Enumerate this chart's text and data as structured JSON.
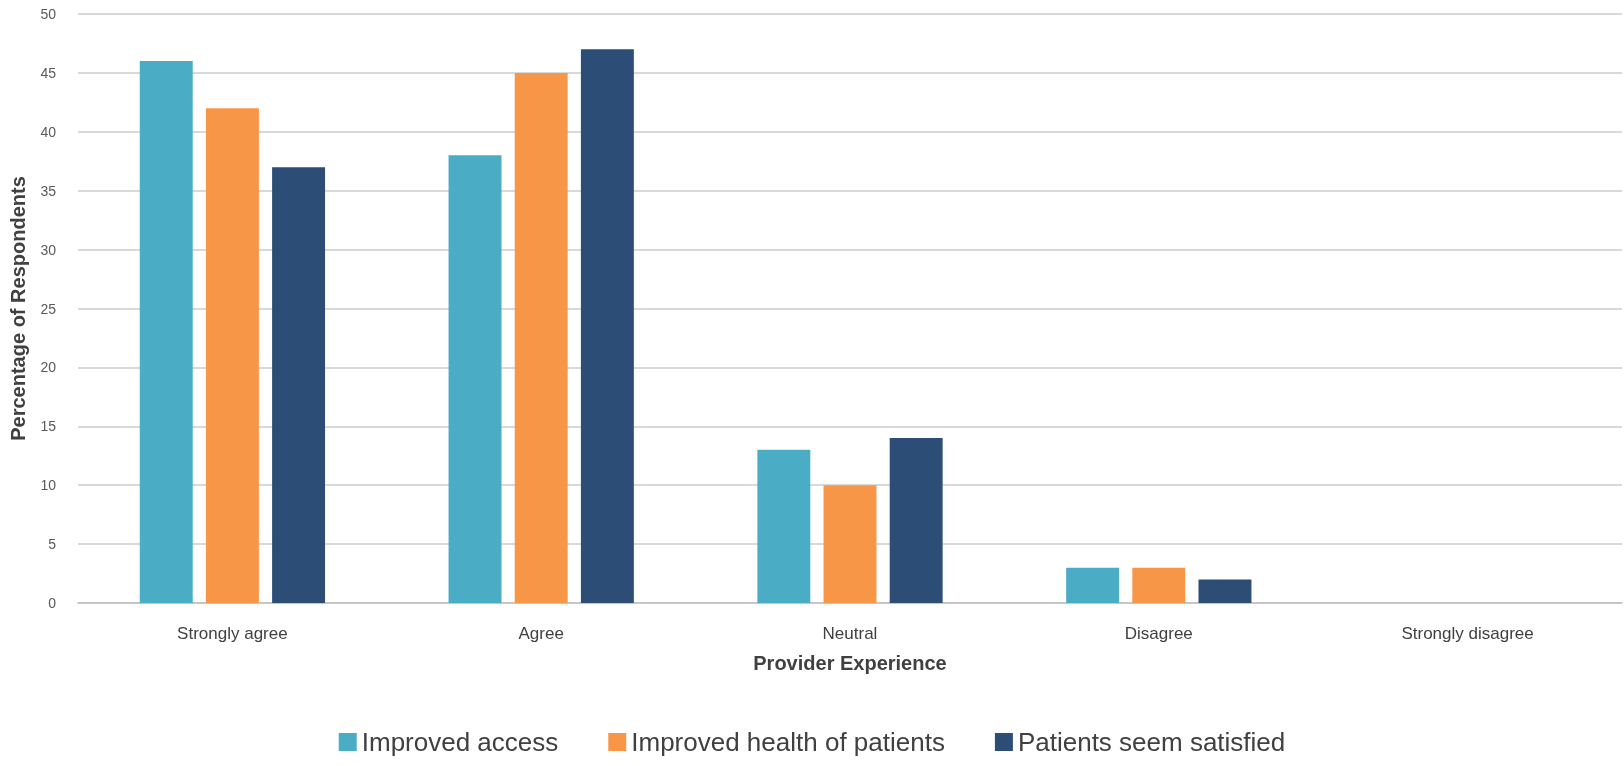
{
  "chart_data": {
    "type": "bar",
    "xlabel": "Provider Experience",
    "ylabel": "Percentage of Respondents",
    "categories": [
      "Strongly agree",
      "Agree",
      "Neutral",
      "Disagree",
      "Strongly disagree"
    ],
    "series": [
      {
        "name": "Improved access",
        "color": "#4bacc6",
        "values": [
          46,
          38,
          13,
          3,
          0
        ]
      },
      {
        "name": "Improved health of patients",
        "color": "#f79646",
        "values": [
          42,
          45,
          10,
          3,
          0
        ]
      },
      {
        "name": "Patients seem satisfied",
        "color": "#2c4d75",
        "values": [
          37,
          47,
          14,
          2,
          0
        ]
      }
    ],
    "ylim": [
      0,
      50
    ],
    "yticks": [
      0,
      5,
      10,
      15,
      20,
      25,
      30,
      35,
      40,
      45,
      50
    ],
    "grid": "y",
    "legend": "bottom"
  }
}
